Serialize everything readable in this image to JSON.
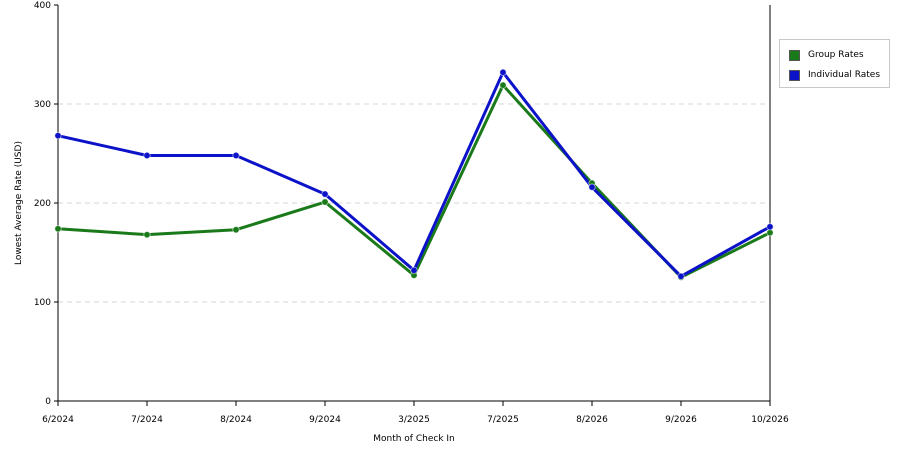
{
  "chart_data": {
    "type": "line",
    "title": "",
    "xlabel": "Month of Check In",
    "ylabel": "Lowest Average Rate (USD)",
    "categories": [
      "6/2024",
      "7/2024",
      "8/2024",
      "9/2024",
      "3/2025",
      "7/2025",
      "8/2026",
      "9/2026",
      "10/2026"
    ],
    "ylim": [
      0,
      400
    ],
    "yticks": [
      "0",
      "100",
      "200",
      "300",
      "400"
    ],
    "grid": true,
    "legend_position": "right",
    "series": [
      {
        "name": "Group Rates",
        "color": "#1a7a1a",
        "values": [
          174,
          168,
          173,
          201,
          127,
          319,
          220,
          125,
          170
        ]
      },
      {
        "name": "Individual Rates",
        "color": "#0c12c8",
        "values": [
          268,
          248,
          248,
          209,
          132,
          332,
          216,
          126,
          176
        ]
      }
    ]
  },
  "legend": {
    "items": [
      {
        "label": "Group Rates",
        "color": "#1a7a1a"
      },
      {
        "label": "Individual Rates",
        "color": "#0c12c8"
      }
    ]
  }
}
